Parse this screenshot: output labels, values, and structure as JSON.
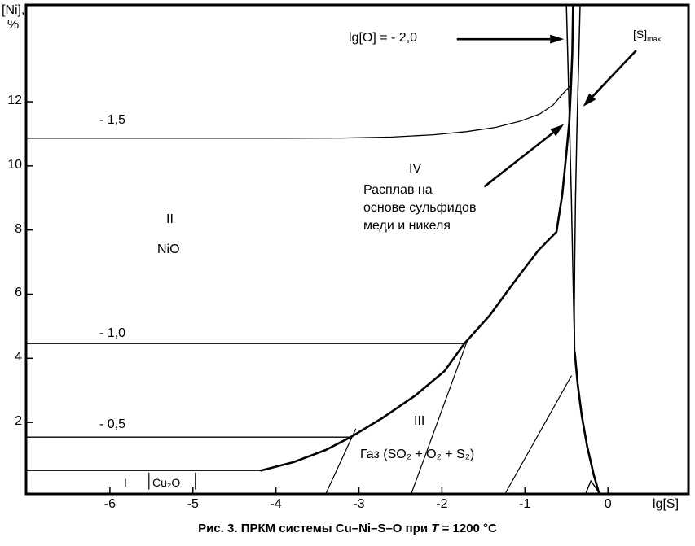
{
  "colors": {
    "ink": "#000000",
    "background": "#ffffff"
  },
  "caption": {
    "prefix": "Рис. 3. ПРКМ системы Cu–Ni–S–O при ",
    "italic_t": "T",
    "suffix": " = 1200 °C"
  },
  "labels": {
    "y_axis_line1": "[Ni],",
    "y_axis_line2": "%",
    "iso_15": "- 1,5",
    "iso_10": "- 1,0",
    "iso_05": "- 0,5",
    "region_2": "II",
    "region_2_phase": "NiO",
    "region_4": "IV",
    "region_4_desc_line1": "Расплав на",
    "region_4_desc_line2": "основе сульфидов",
    "region_4_desc_line3": "меди и никеля",
    "region_3": "III",
    "region_3_phase": "Газ (SO₂ + O₂ + S₂)",
    "region_1": "I",
    "region_1_phase": "Cu₂O",
    "lgO_annotation": "lg[O] = - 2,0",
    "smax_base": "[S]",
    "smax_sub": "max"
  },
  "chart_data": {
    "type": "line",
    "title": "Рис. 3. ПРКМ системы Cu–Ni–S–O при T = 1200 °C",
    "xlabel": "lg[S]",
    "ylabel": "[Ni], %",
    "xlim": [
      -7.01,
      0.97
    ],
    "ylim": [
      -0.23,
      15.02
    ],
    "grid": false,
    "x_ticks": {
      "values": [
        -6,
        -5,
        -4,
        -3,
        -2,
        -1,
        0
      ],
      "labels": [
        "-6",
        "-5",
        "-4",
        "-3",
        "-2",
        "-1",
        "0"
      ]
    },
    "y_ticks": {
      "values": [
        2,
        4,
        6,
        8,
        10,
        12
      ],
      "labels": [
        "2",
        "4",
        "6",
        "8",
        "10",
        "12"
      ]
    },
    "regions": [
      "I — Cu₂O",
      "II — NiO",
      "III — Газ (SO₂ + O₂ + S₂)",
      "IV — Расплав на основе сульфидов меди и никеля"
    ],
    "series": [
      {
        "name": "iso-lgO-minus-1-5",
        "width": 1.3,
        "points": [
          [
            -7.01,
            10.86
          ],
          [
            -4.0,
            10.86
          ],
          [
            -3.2,
            10.87
          ],
          [
            -2.6,
            10.9
          ],
          [
            -2.1,
            10.97
          ],
          [
            -1.7,
            11.07
          ],
          [
            -1.35,
            11.2
          ],
          [
            -1.05,
            11.4
          ],
          [
            -0.82,
            11.62
          ],
          [
            -0.66,
            11.9
          ],
          [
            -0.56,
            12.2
          ],
          [
            -0.49,
            12.4
          ],
          [
            -0.445,
            12.5
          ]
        ]
      },
      {
        "name": "iso-lgO-minus-1-0",
        "width": 1.3,
        "points": [
          [
            -7.01,
            4.46
          ],
          [
            -1.73,
            4.46
          ]
        ]
      },
      {
        "name": "iso-lgO-minus-0-5",
        "width": 1.3,
        "points": [
          [
            -7.01,
            1.54
          ],
          [
            -3.1,
            1.54
          ]
        ]
      },
      {
        "name": "cu2o-upper-boundary",
        "width": 1.3,
        "points": [
          [
            -7.01,
            0.5
          ],
          [
            -4.18,
            0.5
          ]
        ]
      },
      {
        "name": "melt-liquidus-boundary",
        "width": 2.6,
        "points": [
          [
            -4.18,
            0.5
          ],
          [
            -3.79,
            0.76
          ],
          [
            -3.4,
            1.14
          ],
          [
            -3.1,
            1.54
          ],
          [
            -2.71,
            2.15
          ],
          [
            -2.32,
            2.84
          ],
          [
            -1.97,
            3.6
          ],
          [
            -1.73,
            4.46
          ],
          [
            -1.43,
            5.32
          ],
          [
            -1.14,
            6.34
          ],
          [
            -0.84,
            7.36
          ],
          [
            -0.62,
            7.94
          ],
          [
            -0.55,
            9.1
          ],
          [
            -0.5,
            10.4
          ],
          [
            -0.465,
            11.4
          ],
          [
            -0.445,
            12.5
          ],
          [
            -0.43,
            13.5
          ],
          [
            -0.42,
            15.02
          ]
        ]
      },
      {
        "name": "iso-lgO-minus-2-0-steep",
        "width": 1.5,
        "points": [
          [
            -0.5,
            15.02
          ],
          [
            -0.48,
            13.0
          ],
          [
            -0.46,
            11.0
          ],
          [
            -0.44,
            9.0
          ],
          [
            -0.425,
            7.0
          ],
          [
            -0.41,
            5.2
          ],
          [
            -0.4,
            4.2
          ]
        ]
      },
      {
        "name": "smax-line",
        "width": 1.5,
        "points": [
          [
            -0.335,
            15.02
          ],
          [
            -0.355,
            13.0
          ],
          [
            -0.375,
            11.0
          ],
          [
            -0.39,
            9.0
          ],
          [
            -0.4,
            7.0
          ],
          [
            -0.405,
            5.5
          ],
          [
            -0.4,
            4.2
          ]
        ]
      },
      {
        "name": "gas-melt-lower-boundary",
        "width": 2.6,
        "points": [
          [
            -0.4,
            4.2
          ],
          [
            -0.365,
            3.2
          ],
          [
            -0.315,
            2.2
          ],
          [
            -0.25,
            1.25
          ],
          [
            -0.17,
            0.35
          ],
          [
            -0.105,
            -0.23
          ]
        ]
      },
      {
        "name": "gas-iso-diagonal-1",
        "width": 1.2,
        "points": [
          [
            -3.4,
            -0.23
          ],
          [
            -3.04,
            1.79
          ]
        ]
      },
      {
        "name": "gas-iso-diagonal-2",
        "width": 1.2,
        "points": [
          [
            -2.37,
            -0.23
          ],
          [
            -1.7,
            4.51
          ]
        ]
      },
      {
        "name": "gas-iso-diagonal-3",
        "width": 1.2,
        "points": [
          [
            -1.24,
            -0.23
          ],
          [
            -0.44,
            3.45
          ]
        ]
      },
      {
        "name": "bottom-right-notch",
        "width": 1.4,
        "points": [
          [
            -0.27,
            -0.23
          ],
          [
            -0.205,
            0.18
          ],
          [
            -0.1,
            -0.23
          ]
        ]
      },
      {
        "name": "cu2o-tick-left",
        "width": 1.2,
        "points": [
          [
            -5.53,
            0.42
          ],
          [
            -5.53,
            -0.08
          ]
        ]
      },
      {
        "name": "cu2o-tick-right",
        "width": 1.2,
        "points": [
          [
            -4.97,
            0.42
          ],
          [
            -4.97,
            -0.08
          ]
        ]
      }
    ],
    "arrows": [
      {
        "name": "lgO-annotation-arrow",
        "from": [
          -1.82,
          13.95
        ],
        "to": [
          -0.53,
          13.95
        ]
      },
      {
        "name": "smax-annotation-arrow",
        "from": [
          0.34,
          13.6
        ],
        "to": [
          -0.3,
          11.85
        ]
      },
      {
        "name": "melt-annotation-arrow",
        "from": [
          -1.49,
          9.35
        ],
        "to": [
          -0.53,
          11.3
        ]
      }
    ]
  }
}
